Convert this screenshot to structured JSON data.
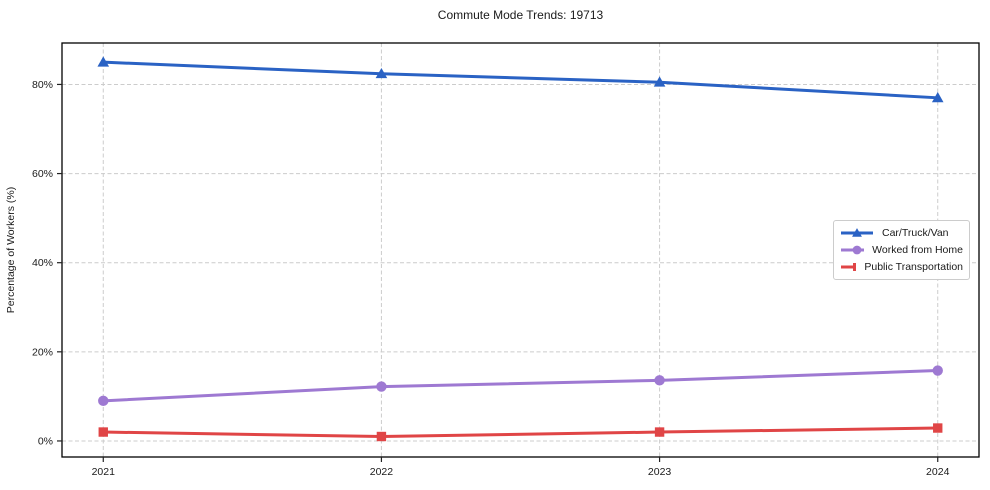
{
  "chart_data": {
    "type": "line",
    "title": "Commute Mode Trends: 19713",
    "xlabel": "",
    "ylabel": "Percentage of Workers (%)",
    "x": [
      2021,
      2022,
      2023,
      2024
    ],
    "x_tick_labels": [
      "2021",
      "2022",
      "2023",
      "2024"
    ],
    "y_ticks": [
      0,
      20,
      40,
      60,
      80
    ],
    "y_tick_labels": [
      "0%",
      "20%",
      "40%",
      "60%",
      "80%"
    ],
    "ylim": [
      -3.6,
      89.3
    ],
    "grid": true,
    "grid_style": "dashed",
    "legend_position": "center-right",
    "series": [
      {
        "name": "Car/Truck/Van",
        "marker": "triangle",
        "color": "#2a62c4",
        "values": [
          85.0,
          82.4,
          80.5,
          77.0
        ]
      },
      {
        "name": "Worked from Home",
        "marker": "circle",
        "color": "#9e79d2",
        "values": [
          9.0,
          12.2,
          13.6,
          15.8
        ]
      },
      {
        "name": "Public Transportation",
        "marker": "square",
        "color": "#e04546",
        "values": [
          2.0,
          1.0,
          2.0,
          2.9
        ]
      }
    ]
  }
}
